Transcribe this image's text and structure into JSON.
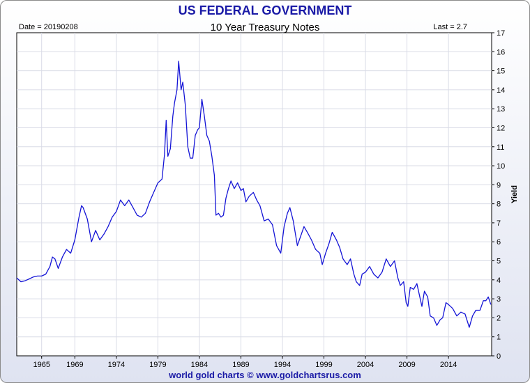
{
  "page": {
    "title": "US FEDERAL GOVERNMENT",
    "date_label": "Date = 20190208",
    "last_label": "Last = 2.7",
    "credit": "world gold charts © www.goldchartsrus.com"
  },
  "colors": {
    "line": "#1414d6",
    "title": "#1a1aa6",
    "grid": "#d9dbe6"
  },
  "chart_data": {
    "type": "line",
    "title": "10 Year Treasury Notes",
    "xlabel": "",
    "ylabel": "Yield",
    "xlim": [
      1962.0,
      2019.2
    ],
    "ylim": [
      0,
      17
    ],
    "x_ticks": [
      1965,
      1969,
      1974,
      1979,
      1984,
      1989,
      1994,
      1999,
      2004,
      2009,
      2014
    ],
    "y_ticks": [
      0,
      1,
      2,
      3,
      4,
      5,
      6,
      7,
      8,
      9,
      10,
      11,
      12,
      13,
      14,
      15,
      16,
      17
    ],
    "y_axis_side": "right",
    "grid": true,
    "legend": "none",
    "series": [
      {
        "x": [
          1962.0,
          1962.5,
          1963.0,
          1963.5,
          1964.0,
          1964.5,
          1965.0,
          1965.5,
          1966.0,
          1966.3,
          1966.6,
          1967.0,
          1967.5,
          1968.0,
          1968.5,
          1969.0,
          1969.5,
          1969.8,
          1970.0,
          1970.5,
          1971.0,
          1971.5,
          1972.0,
          1972.5,
          1973.0,
          1973.5,
          1974.0,
          1974.5,
          1975.0,
          1975.5,
          1976.0,
          1976.5,
          1977.0,
          1977.5,
          1978.0,
          1978.5,
          1979.0,
          1979.5,
          1979.8,
          1980.0,
          1980.2,
          1980.5,
          1980.8,
          1981.0,
          1981.3,
          1981.5,
          1981.8,
          1982.0,
          1982.3,
          1982.6,
          1982.9,
          1983.2,
          1983.5,
          1983.8,
          1984.0,
          1984.3,
          1984.6,
          1984.9,
          1985.2,
          1985.5,
          1985.8,
          1986.0,
          1986.3,
          1986.6,
          1986.9,
          1987.2,
          1987.5,
          1987.8,
          1988.2,
          1988.6,
          1989.0,
          1989.3,
          1989.6,
          1990.0,
          1990.5,
          1990.9,
          1991.3,
          1991.8,
          1992.3,
          1992.8,
          1993.3,
          1993.8,
          1994.2,
          1994.6,
          1994.9,
          1995.3,
          1995.8,
          1996.2,
          1996.6,
          1997.0,
          1997.5,
          1998.0,
          1998.5,
          1998.8,
          1999.2,
          1999.6,
          2000.0,
          2000.5,
          2000.9,
          2001.3,
          2001.8,
          2002.2,
          2002.6,
          2002.9,
          2003.3,
          2003.6,
          2004.0,
          2004.5,
          2005.0,
          2005.5,
          2006.0,
          2006.5,
          2007.0,
          2007.5,
          2007.9,
          2008.2,
          2008.6,
          2008.9,
          2009.1,
          2009.4,
          2009.8,
          2010.2,
          2010.5,
          2010.8,
          2011.1,
          2011.5,
          2011.8,
          2012.2,
          2012.6,
          2013.0,
          2013.3,
          2013.7,
          2014.0,
          2014.5,
          2015.0,
          2015.5,
          2016.0,
          2016.5,
          2016.9,
          2017.3,
          2017.8,
          2018.2,
          2018.5,
          2018.8,
          2019.1
        ],
        "y": [
          4.1,
          3.9,
          3.95,
          4.05,
          4.15,
          4.2,
          4.2,
          4.3,
          4.7,
          5.2,
          5.1,
          4.6,
          5.2,
          5.6,
          5.4,
          6.1,
          7.3,
          7.9,
          7.8,
          7.2,
          6.0,
          6.6,
          6.1,
          6.4,
          6.8,
          7.3,
          7.6,
          8.2,
          7.9,
          8.2,
          7.8,
          7.4,
          7.3,
          7.5,
          8.1,
          8.6,
          9.1,
          9.3,
          10.6,
          12.4,
          10.5,
          10.9,
          12.6,
          13.3,
          14.0,
          15.5,
          14.0,
          14.4,
          13.2,
          11.0,
          10.4,
          10.4,
          11.6,
          11.9,
          12.0,
          13.5,
          12.6,
          11.6,
          11.3,
          10.5,
          9.5,
          7.4,
          7.5,
          7.3,
          7.4,
          8.3,
          8.8,
          9.2,
          8.8,
          9.1,
          8.7,
          8.8,
          8.1,
          8.4,
          8.6,
          8.2,
          7.9,
          7.1,
          7.2,
          6.9,
          5.8,
          5.4,
          6.8,
          7.5,
          7.8,
          7.1,
          5.8,
          6.3,
          6.8,
          6.5,
          6.1,
          5.6,
          5.4,
          4.8,
          5.4,
          5.9,
          6.5,
          6.1,
          5.7,
          5.1,
          4.8,
          5.1,
          4.3,
          3.9,
          3.7,
          4.3,
          4.4,
          4.7,
          4.3,
          4.1,
          4.4,
          5.1,
          4.7,
          5.0,
          4.1,
          3.7,
          3.9,
          2.8,
          2.6,
          3.6,
          3.5,
          3.8,
          3.2,
          2.6,
          3.4,
          3.1,
          2.1,
          2.0,
          1.6,
          1.9,
          2.0,
          2.8,
          2.7,
          2.5,
          2.1,
          2.3,
          2.2,
          1.5,
          2.1,
          2.4,
          2.4,
          2.9,
          2.9,
          3.1,
          2.7
        ]
      }
    ]
  }
}
